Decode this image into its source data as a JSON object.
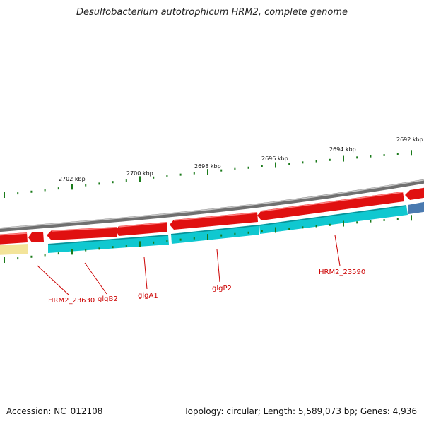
{
  "title": "Desulfobacterium autotrophicum HRM2, complete genome",
  "footer": {
    "accession": "Accession: NC_012108",
    "stats": "Topology: circular; Length: 5,589,073 bp; Genes: 4,936"
  },
  "colors": {
    "forward_gene": "#e01010",
    "reverse_gene": "#10c8d0",
    "reverse_gene_alt": "#4a7ab0",
    "pale_feature": "#f3e49a",
    "backbone": "#8a8a8a",
    "tick": "#1a7a1a",
    "label": "#cc0000"
  },
  "scale_labels": [
    "2702 kbp",
    "2700 kbp",
    "2698 kbp",
    "2696 kbp",
    "2694 kbp",
    "2692 kbp"
  ],
  "gene_labels": [
    "HRM2_23630",
    "glgB2",
    "glgA1",
    "glgP2",
    "HRM2_23590"
  ]
}
